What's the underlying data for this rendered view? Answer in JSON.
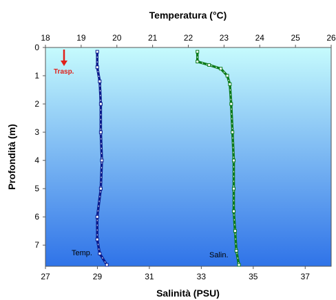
{
  "chart_data": {
    "type": "line",
    "top_axis": {
      "label": "Temperatura (°C)",
      "range": [
        18,
        26
      ],
      "ticks": [
        "18",
        "19",
        "20",
        "21",
        "22",
        "23",
        "24",
        "25",
        "26"
      ]
    },
    "bottom_axis": {
      "label": "Salinità (PSU)",
      "range": [
        27,
        38
      ],
      "ticks": [
        "27",
        "29",
        "31",
        "33",
        "35",
        "37"
      ]
    },
    "y_axis": {
      "label": "Profondità (m)",
      "range": [
        0,
        7.75
      ],
      "inverted": true,
      "ticks": [
        "0",
        "1",
        "2",
        "3",
        "4",
        "5",
        "6",
        "7"
      ]
    },
    "series": [
      {
        "name": "Temp.",
        "axis": "top",
        "color": "#0a1a8c",
        "points": [
          {
            "x": 19.45,
            "y": 0.15
          },
          {
            "x": 19.45,
            "y": 0.7
          },
          {
            "x": 19.52,
            "y": 1.2
          },
          {
            "x": 19.55,
            "y": 2.0
          },
          {
            "x": 19.55,
            "y": 3.0
          },
          {
            "x": 19.58,
            "y": 4.0
          },
          {
            "x": 19.55,
            "y": 5.0
          },
          {
            "x": 19.45,
            "y": 6.0
          },
          {
            "x": 19.45,
            "y": 6.8
          },
          {
            "x": 19.52,
            "y": 7.3
          },
          {
            "x": 19.72,
            "y": 7.7
          }
        ]
      },
      {
        "name": "Salin.",
        "axis": "bottom",
        "color": "#0b7a1a",
        "points": [
          {
            "x": 32.85,
            "y": 0.15
          },
          {
            "x": 32.85,
            "y": 0.5
          },
          {
            "x": 33.3,
            "y": 0.62
          },
          {
            "x": 33.75,
            "y": 0.75
          },
          {
            "x": 34.0,
            "y": 1.0
          },
          {
            "x": 34.1,
            "y": 1.3
          },
          {
            "x": 34.15,
            "y": 2.0
          },
          {
            "x": 34.2,
            "y": 3.0
          },
          {
            "x": 34.25,
            "y": 4.0
          },
          {
            "x": 34.25,
            "y": 5.0
          },
          {
            "x": 34.25,
            "y": 5.8
          },
          {
            "x": 34.3,
            "y": 6.5
          },
          {
            "x": 34.35,
            "y": 7.2
          },
          {
            "x": 34.45,
            "y": 7.7
          }
        ]
      }
    ],
    "annotation": {
      "label": "Trasp.",
      "depth": 0,
      "color": "#e0201a"
    },
    "background_gradient": [
      "#c6fbfd",
      "#2f73e8"
    ],
    "grid": false,
    "legend": "none"
  }
}
